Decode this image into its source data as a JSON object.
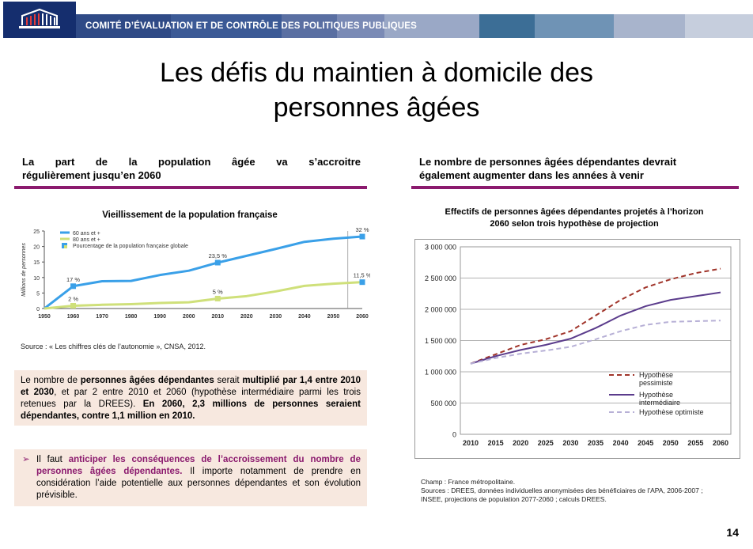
{
  "header": {
    "title": "COMITÉ D’ÉVALUATION ET DE CONTRÔLE DES POLITIQUES PUBLIQUES",
    "band_colors": [
      "#2f4a86",
      "#3c5a96",
      "#5a6fa2",
      "#7a8ab5",
      "#9aa8c6",
      "#3c6e96",
      "#6f93b5",
      "#a8b4cc",
      "#c6cedd"
    ]
  },
  "slide": {
    "title_line1": "Les défis du maintien à domicile des",
    "title_line2": "personnes âgées",
    "page_number": "14"
  },
  "left": {
    "heading_line1": "La part de la population âgée va s’accroitre",
    "heading_line2": "régulièrement jusqu’en 2060",
    "chart_title": "Vieillissement de la population française",
    "source": "Source : « Les chiffres clés de l’autonomie », CNSA, 2012.",
    "box1": {
      "p1": "Le nombre de ",
      "b1": "personnes âgées dépendantes",
      "p2": " serait ",
      "b2": "multiplié par 1,4 entre 2010 et 2030",
      "p3": ", et par 2 entre 2010 et 2060 (hypothèse intermédiaire parmi les trois retenues par la DREES). ",
      "b3": "En 2060, 2,3 millions de personnes seraient dépendantes, contre 1,1 million en 2010."
    },
    "box2": {
      "bullet": "➢",
      "p1": "Il faut ",
      "b1": "anticiper les conséquences de l’accroissement du nombre de personnes âgées dépendantes.",
      "p2": " Il importe notamment de prendre en considération l’aide potentielle aux personnes dépendantes et son évolution  prévisible."
    }
  },
  "right": {
    "heading_line1": "Le nombre de personnes âgées dépendantes devrait",
    "heading_line2": "également augmenter dans les années à venir",
    "chart_title_line1": "Effectifs  de personnes âgées dépendantes projetés  à l’horizon",
    "chart_title_line2": "2060 selon  trois hypothèse  de projection",
    "notes": [
      "Champ : France métropolitaine.",
      "Sources : DREES, données individuelles anonymisées des bénéficiaires de l’APA, 2006-2007 ;",
      "INSEE, projections de population 2077-2060 ; calculs DREES."
    ]
  },
  "chart_data": [
    {
      "type": "line",
      "title": "Vieillissement de la population française",
      "ylabel": "Millions de personnes",
      "x": [
        1950,
        1960,
        1970,
        1980,
        1990,
        2000,
        2010,
        2020,
        2030,
        2040,
        2050,
        2060
      ],
      "ylim": [
        0,
        25
      ],
      "yticks": [
        0,
        5,
        10,
        15,
        20,
        25
      ],
      "series": [
        {
          "name": "60 ans et +",
          "color": "#3aa0e8",
          "values": [
            0,
            7.2,
            8.8,
            8.9,
            10.8,
            12.2,
            14.8,
            17.0,
            19.2,
            21.5,
            22.5,
            23.2
          ]
        },
        {
          "name": "80 ans et +",
          "color": "#cfe07a",
          "values": [
            0,
            0.9,
            1.2,
            1.4,
            1.8,
            2.0,
            3.2,
            4.0,
            5.5,
            7.3,
            8.0,
            8.5
          ]
        }
      ],
      "legend_extra": "Pourcentage de la population française globale",
      "annotations": [
        {
          "x": 1960,
          "y": 7.2,
          "text": "17 %"
        },
        {
          "x": 2010,
          "y": 14.8,
          "text": "23,5 %"
        },
        {
          "x": 2060,
          "y": 23.2,
          "text": "32 %"
        },
        {
          "x": 1960,
          "y": 0.9,
          "text": "2 %"
        },
        {
          "x": 2010,
          "y": 3.2,
          "text": "5 %"
        },
        {
          "x": 2060,
          "y": 8.5,
          "text": "11,5 %"
        }
      ],
      "legend": "top-left"
    },
    {
      "type": "line",
      "title": "Effectifs  de personnes âgées dépendantes projetés  à l’horizon 2060 selon  trois hypothèse  de projection",
      "x": [
        2010,
        2015,
        2020,
        2025,
        2030,
        2035,
        2040,
        2045,
        2050,
        2055,
        2060
      ],
      "ylim": [
        0,
        3000000
      ],
      "yticks": [
        0,
        500000,
        1000000,
        1500000,
        2000000,
        2500000,
        3000000
      ],
      "ytick_labels": [
        "0",
        "500 000",
        "1 000 000",
        "1 500 000",
        "2 000 000",
        "2 500 000",
        "3 000 000"
      ],
      "series": [
        {
          "name": "Hypothèse pessimiste",
          "color": "#a0342a",
          "dash": "6,4",
          "values": [
            1130000,
            1280000,
            1430000,
            1520000,
            1650000,
            1900000,
            2150000,
            2350000,
            2480000,
            2580000,
            2650000
          ]
        },
        {
          "name": "Hypothèse intermédiaire",
          "color": "#5b3c8c",
          "dash": "",
          "values": [
            1130000,
            1250000,
            1350000,
            1430000,
            1530000,
            1700000,
            1900000,
            2050000,
            2150000,
            2210000,
            2270000
          ]
        },
        {
          "name": "Hypothèse optimiste",
          "color": "#b7b0d6",
          "dash": "6,4",
          "values": [
            1130000,
            1220000,
            1290000,
            1340000,
            1400000,
            1520000,
            1650000,
            1750000,
            1800000,
            1810000,
            1820000
          ]
        }
      ],
      "legend": "bottom-right",
      "grid": true
    }
  ]
}
